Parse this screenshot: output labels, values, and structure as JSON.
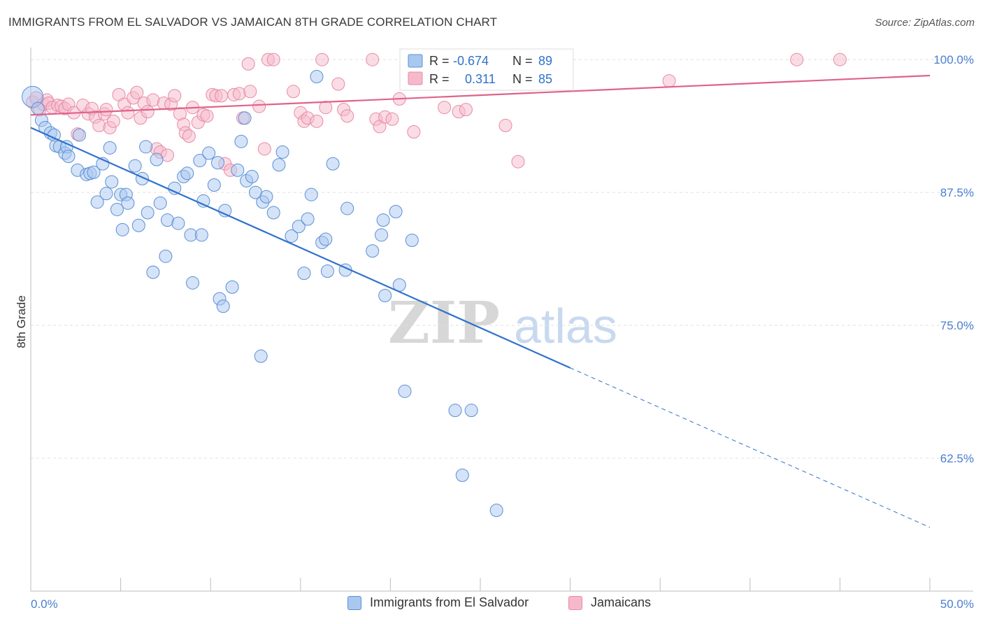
{
  "header": {
    "title": "IMMIGRANTS FROM EL SALVADOR VS JAMAICAN 8TH GRADE CORRELATION CHART",
    "source": "Source: ZipAtlas.com"
  },
  "watermark": {
    "part1": "ZIP",
    "part2": "atlas"
  },
  "colors": {
    "blue_fill": "#a9c8f0",
    "blue_stroke": "#5b8fd6",
    "blue_line": "#2f72cc",
    "pink_fill": "#f6b9cb",
    "pink_stroke": "#e88aa6",
    "pink_line": "#e0628a",
    "tick_text": "#4a7fd0"
  },
  "legend_top": {
    "rows": [
      {
        "r_label": "R =",
        "r_value": "-0.674",
        "n_label": "N =",
        "n_value": "89"
      },
      {
        "r_label": "R =",
        "r_value": "0.311",
        "n_label": "N =",
        "n_value": "85"
      }
    ]
  },
  "legend_bottom": {
    "items": [
      {
        "label": "Immigrants from El Salvador"
      },
      {
        "label": "Jamaicans"
      }
    ]
  },
  "chart_data": {
    "type": "scatter",
    "title": "IMMIGRANTS FROM EL SALVADOR VS JAMAICAN 8TH GRADE CORRELATION CHART",
    "xlabel": "",
    "ylabel": "8th Grade",
    "xlim": [
      0,
      50
    ],
    "ylim": [
      50,
      101
    ],
    "x_tick_labels": [
      "0.0%",
      "50.0%"
    ],
    "y_ticks": [
      {
        "value": 100,
        "label": "100.0%"
      },
      {
        "value": 87.5,
        "label": "87.5%"
      },
      {
        "value": 75,
        "label": "75.0%"
      },
      {
        "value": 62.5,
        "label": "62.5%"
      }
    ],
    "grid": "horizontal dashed",
    "legend_placement": "top-center",
    "series": [
      {
        "name": "Immigrants from El Salvador",
        "color": "#a9c8f0",
        "regression": {
          "r": -0.674,
          "n": 89,
          "x_solid": [
            0,
            30
          ],
          "y_solid": [
            93.6,
            71.0
          ],
          "x_dashed": [
            30,
            50
          ],
          "y_dashed": [
            71.0,
            56.0
          ]
        },
        "points": [
          [
            0.1,
            96.5
          ],
          [
            0.4,
            95.4
          ],
          [
            0.6,
            94.3
          ],
          [
            0.8,
            93.6
          ],
          [
            1.1,
            93.1
          ],
          [
            1.3,
            92.9
          ],
          [
            1.4,
            91.9
          ],
          [
            1.6,
            91.8
          ],
          [
            1.9,
            91.2
          ],
          [
            2.0,
            91.8
          ],
          [
            2.1,
            90.9
          ],
          [
            2.7,
            92.9
          ],
          [
            2.6,
            89.6
          ],
          [
            3.1,
            89.2
          ],
          [
            3.3,
            89.3
          ],
          [
            3.5,
            89.4
          ],
          [
            3.7,
            86.6
          ],
          [
            4.0,
            90.2
          ],
          [
            4.2,
            87.4
          ],
          [
            4.4,
            91.7
          ],
          [
            4.5,
            88.5
          ],
          [
            4.8,
            85.9
          ],
          [
            5.0,
            87.3
          ],
          [
            5.1,
            84.0
          ],
          [
            5.3,
            87.3
          ],
          [
            5.4,
            86.5
          ],
          [
            5.8,
            90.0
          ],
          [
            6.0,
            84.4
          ],
          [
            6.2,
            88.8
          ],
          [
            6.4,
            91.8
          ],
          [
            6.5,
            85.6
          ],
          [
            6.8,
            80.0
          ],
          [
            7.0,
            90.6
          ],
          [
            7.2,
            86.5
          ],
          [
            7.5,
            81.5
          ],
          [
            7.6,
            84.9
          ],
          [
            8.0,
            87.9
          ],
          [
            8.2,
            84.6
          ],
          [
            8.5,
            89.0
          ],
          [
            8.7,
            89.3
          ],
          [
            8.9,
            83.5
          ],
          [
            9.0,
            79.0
          ],
          [
            9.4,
            90.5
          ],
          [
            9.5,
            83.5
          ],
          [
            9.6,
            86.7
          ],
          [
            9.9,
            91.2
          ],
          [
            10.2,
            88.2
          ],
          [
            10.4,
            90.3
          ],
          [
            10.5,
            77.5
          ],
          [
            10.7,
            76.8
          ],
          [
            10.8,
            85.8
          ],
          [
            11.2,
            78.6
          ],
          [
            11.5,
            89.6
          ],
          [
            11.7,
            92.3
          ],
          [
            11.9,
            94.5
          ],
          [
            12.0,
            88.6
          ],
          [
            12.3,
            89.0
          ],
          [
            12.5,
            87.5
          ],
          [
            12.8,
            72.1
          ],
          [
            12.9,
            86.6
          ],
          [
            13.1,
            87.1
          ],
          [
            13.5,
            85.6
          ],
          [
            13.8,
            90.1
          ],
          [
            14.0,
            91.3
          ],
          [
            14.5,
            83.4
          ],
          [
            14.9,
            84.3
          ],
          [
            15.2,
            79.9
          ],
          [
            15.4,
            85.0
          ],
          [
            15.6,
            87.3
          ],
          [
            15.9,
            98.4
          ],
          [
            16.2,
            82.8
          ],
          [
            16.4,
            83.1
          ],
          [
            16.5,
            80.1
          ],
          [
            16.8,
            90.2
          ],
          [
            17.5,
            80.2
          ],
          [
            17.6,
            86.0
          ],
          [
            19.0,
            82.0
          ],
          [
            19.5,
            83.5
          ],
          [
            19.6,
            84.9
          ],
          [
            19.7,
            77.8
          ],
          [
            20.3,
            85.7
          ],
          [
            20.5,
            78.8
          ],
          [
            20.8,
            68.8
          ],
          [
            21.2,
            83.0
          ],
          [
            23.6,
            67.0
          ],
          [
            24.5,
            67.0
          ],
          [
            24.0,
            60.9
          ],
          [
            25.9,
            57.6
          ],
          [
            28.5,
            100.0
          ]
        ]
      },
      {
        "name": "Jamaicans",
        "color": "#f6b9cb",
        "regression": {
          "r": 0.311,
          "n": 85,
          "x": [
            0,
            50
          ],
          "y": [
            94.8,
            98.5
          ]
        },
        "points": [
          [
            0.1,
            96.0
          ],
          [
            0.3,
            96.4
          ],
          [
            0.5,
            95.3
          ],
          [
            0.7,
            95.8
          ],
          [
            0.9,
            96.2
          ],
          [
            1.0,
            95.9
          ],
          [
            1.2,
            95.5
          ],
          [
            1.5,
            95.7
          ],
          [
            1.7,
            95.6
          ],
          [
            1.9,
            95.4
          ],
          [
            2.1,
            95.8
          ],
          [
            2.4,
            95.0
          ],
          [
            2.6,
            93.0
          ],
          [
            2.9,
            95.7
          ],
          [
            3.2,
            94.9
          ],
          [
            3.4,
            95.4
          ],
          [
            3.6,
            94.6
          ],
          [
            3.8,
            93.8
          ],
          [
            4.1,
            94.9
          ],
          [
            4.2,
            95.3
          ],
          [
            4.4,
            93.6
          ],
          [
            4.6,
            94.2
          ],
          [
            4.9,
            96.7
          ],
          [
            5.2,
            95.8
          ],
          [
            5.4,
            95.0
          ],
          [
            5.7,
            96.4
          ],
          [
            5.9,
            96.9
          ],
          [
            6.1,
            94.5
          ],
          [
            6.3,
            95.9
          ],
          [
            6.5,
            95.1
          ],
          [
            6.8,
            96.2
          ],
          [
            7.0,
            91.6
          ],
          [
            7.2,
            91.3
          ],
          [
            7.4,
            95.9
          ],
          [
            7.6,
            91.0
          ],
          [
            7.8,
            95.8
          ],
          [
            8.0,
            96.6
          ],
          [
            8.3,
            94.9
          ],
          [
            8.5,
            93.9
          ],
          [
            8.6,
            93.1
          ],
          [
            8.8,
            92.8
          ],
          [
            9.0,
            95.5
          ],
          [
            9.3,
            94.1
          ],
          [
            9.6,
            94.8
          ],
          [
            9.8,
            94.7
          ],
          [
            10.1,
            96.7
          ],
          [
            10.3,
            96.6
          ],
          [
            10.6,
            96.6
          ],
          [
            10.8,
            90.2
          ],
          [
            11.1,
            89.6
          ],
          [
            11.3,
            96.7
          ],
          [
            11.6,
            96.8
          ],
          [
            11.8,
            94.5
          ],
          [
            12.1,
            99.6
          ],
          [
            12.2,
            97.0
          ],
          [
            12.7,
            95.6
          ],
          [
            13.0,
            91.6
          ],
          [
            13.2,
            100.0
          ],
          [
            13.5,
            100.0
          ],
          [
            14.6,
            97.0
          ],
          [
            15.0,
            95.0
          ],
          [
            15.2,
            94.2
          ],
          [
            15.4,
            94.5
          ],
          [
            15.9,
            94.2
          ],
          [
            16.2,
            100.0
          ],
          [
            16.4,
            95.5
          ],
          [
            17.1,
            97.7
          ],
          [
            17.4,
            95.3
          ],
          [
            17.6,
            94.7
          ],
          [
            19.0,
            100.0
          ],
          [
            19.2,
            94.4
          ],
          [
            19.4,
            93.7
          ],
          [
            19.7,
            94.6
          ],
          [
            20.1,
            94.4
          ],
          [
            20.5,
            96.3
          ],
          [
            21.3,
            93.2
          ],
          [
            23.0,
            95.5
          ],
          [
            23.8,
            95.1
          ],
          [
            24.2,
            95.3
          ],
          [
            26.4,
            93.8
          ],
          [
            27.1,
            90.4
          ],
          [
            27.5,
            100.0
          ],
          [
            35.5,
            98.0
          ],
          [
            42.6,
            100.0
          ],
          [
            45.0,
            100.0
          ]
        ]
      }
    ]
  }
}
